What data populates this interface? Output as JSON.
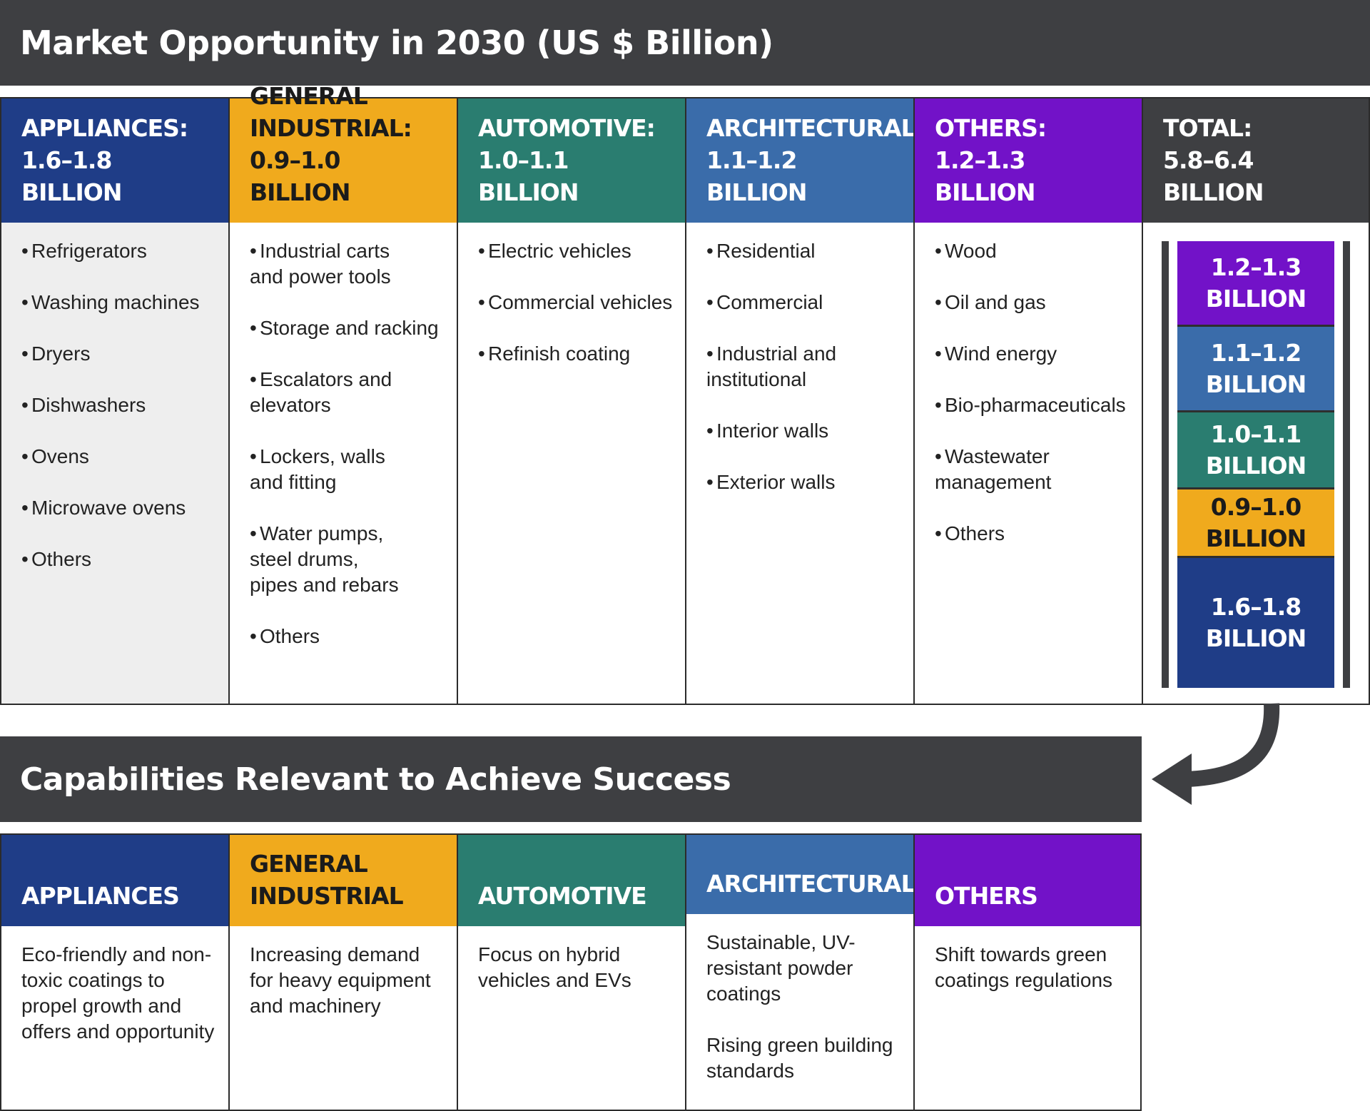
{
  "market": {
    "title": "Market Opportunity in 2030 (US $ Billion)",
    "columns": [
      {
        "line1": "APPLIANCES:",
        "line2": "1.6–1.8 BILLION",
        "color": "#1f3d87",
        "items": [
          "Refrigerators",
          "Washing machines",
          "Dryers",
          "Dishwashers",
          "Ovens",
          "Microwave ovens",
          "Others"
        ]
      },
      {
        "line0": "GENERAL",
        "line1": "INDUSTRIAL:",
        "line2": "0.9–1.0 BILLION",
        "color": "#f0aa1d",
        "items": [
          "Industrial carts\n and power tools",
          "Storage and racking",
          "Escalators and\n elevators",
          "Lockers, walls\n and fitting",
          "Water pumps,\n steel drums,\n pipes and rebars",
          "Others"
        ]
      },
      {
        "line1": "AUTOMOTIVE:",
        "line2": "1.0–1.1 BILLION",
        "color": "#2a7d70",
        "items": [
          "Electric vehicles",
          "Commercial vehicles",
          "Refinish coating"
        ]
      },
      {
        "line1": "ARCHITECTURAL:",
        "line2": "1.1–1.2 BILLION",
        "color": "#3a6caa",
        "items": [
          "Residential",
          "Commercial",
          "Industrial and\n institutional",
          "Interior walls",
          "Exterior walls"
        ]
      },
      {
        "line1": "OTHERS:",
        "line2": "1.2–1.3 BILLION",
        "color": "#7212c8",
        "items": [
          "Wood",
          "Oil and gas",
          "Wind energy",
          "Bio-pharmaceuticals",
          "Wastewater\n management",
          "Others"
        ]
      }
    ],
    "total": {
      "line1": "TOTAL:",
      "line2": "5.8–6.4 BILLION",
      "color": "#3e3f42",
      "segments": [
        {
          "line1": "1.2–1.3",
          "line2": "BILLION",
          "color": "#7212c8",
          "text_color": "#ffffff",
          "value": 1.25
        },
        {
          "line1": "1.1–1.2",
          "line2": "BILLION",
          "color": "#3a6caa",
          "text_color": "#ffffff",
          "value": 1.15
        },
        {
          "line1": "1.0–1.1",
          "line2": "BILLION",
          "color": "#2a7d70",
          "text_color": "#ffffff",
          "value": 1.05
        },
        {
          "line1": "0.9–1.0",
          "line2": "BILLION",
          "color": "#f0aa1d",
          "text_color": "#1b1b1b",
          "value": 0.95
        },
        {
          "line1": "1.6–1.8",
          "line2": "BILLION",
          "color": "#1f3d87",
          "text_color": "#ffffff",
          "value": 1.7
        }
      ]
    }
  },
  "capabilities": {
    "title": "Capabilities Relevant to Achieve Success",
    "columns": [
      {
        "line1": "APPLIANCES",
        "color": "#1f3d87",
        "paras": [
          "Eco-friendly and non-toxic coatings to propel growth and offers and opportunity"
        ]
      },
      {
        "line0": "GENERAL",
        "line1": "INDUSTRIAL",
        "color": "#f0aa1d",
        "paras": [
          "Increasing demand for heavy equipment and machinery"
        ]
      },
      {
        "line1": "AUTOMOTIVE",
        "color": "#2a7d70",
        "paras": [
          "Focus on hybrid vehicles and EVs"
        ]
      },
      {
        "line1": "ARCHITECTURAL",
        "color": "#3a6caa",
        "paras": [
          "Sustainable, UV-resistant powder coatings",
          "Rising green building standards"
        ]
      },
      {
        "line1": "OTHERS",
        "color": "#7212c8",
        "paras": [
          "Shift towards green coatings regulations"
        ]
      }
    ]
  }
}
